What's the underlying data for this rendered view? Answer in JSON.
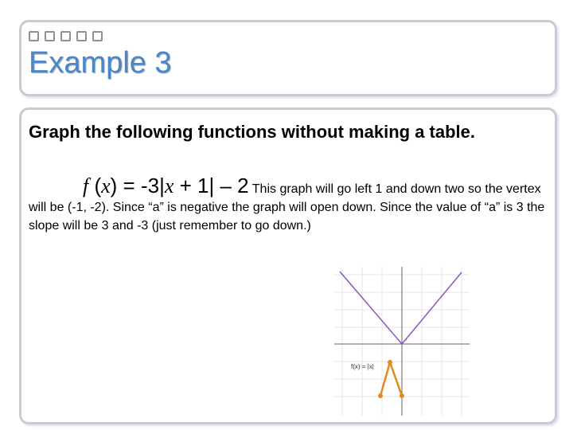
{
  "header": {
    "title": "Example 3"
  },
  "body": {
    "instruction": "Graph the following functions without making a table.",
    "formula": [
      "f",
      " (",
      "x",
      ") = -3|",
      "x",
      " + 1| – 2"
    ],
    "explanation": "This graph will go left 1 and down two so the vertex will be (-1, -2). Since “a” is negative the graph will open down. Since the value of “a” is 3 the slope will be 3 and -3 (just remember to go down.)",
    "graph_label": "f(x) = |x|"
  }
}
